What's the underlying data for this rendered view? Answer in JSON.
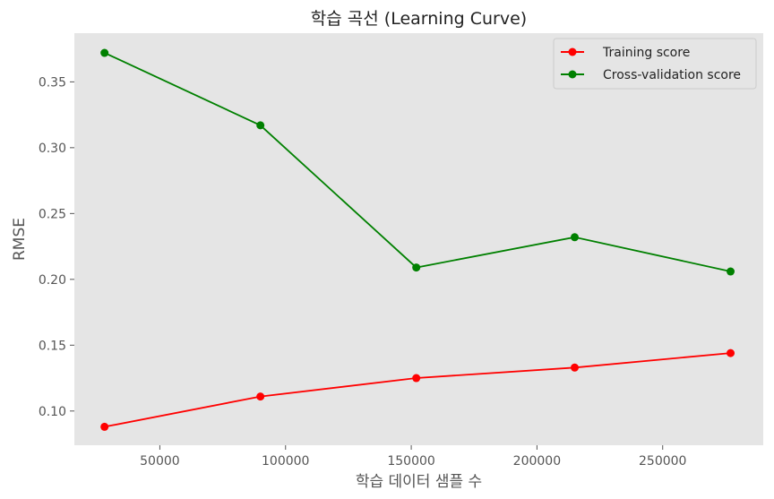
{
  "chart_data": {
    "type": "line",
    "title": "학습 곡선 (Learning Curve)",
    "xlabel": "학습 데이터 샘플 수",
    "ylabel": "RMSE",
    "x": [
      28000,
      90000,
      152000,
      215000,
      277000
    ],
    "xlim": [
      16000,
      290000
    ],
    "ylim": [
      0.074,
      0.387
    ],
    "xticks": [
      50000,
      100000,
      150000,
      200000,
      250000
    ],
    "xtick_labels": [
      "50000",
      "100000",
      "150000",
      "200000",
      "250000"
    ],
    "yticks": [
      0.1,
      0.15,
      0.2,
      0.25,
      0.3,
      0.35
    ],
    "ytick_labels": [
      "0.10",
      "0.15",
      "0.20",
      "0.25",
      "0.30",
      "0.35"
    ],
    "grid": false,
    "legend": "top-right",
    "background_color": "#e5e5e5",
    "series": [
      {
        "name": "Training score",
        "color": "#ff0000",
        "values": [
          0.088,
          0.111,
          0.125,
          0.133,
          0.144
        ]
      },
      {
        "name": "Cross-validation score",
        "color": "#008000",
        "values": [
          0.372,
          0.317,
          0.209,
          0.232,
          0.206
        ]
      }
    ]
  }
}
